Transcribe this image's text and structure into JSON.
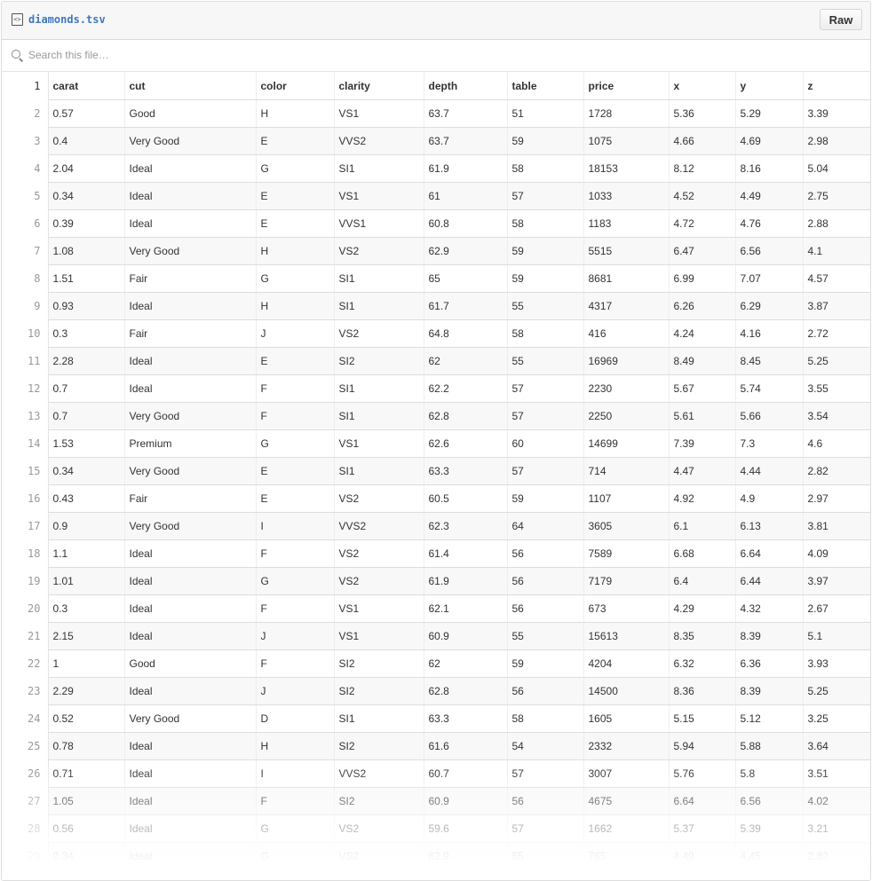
{
  "file": {
    "name": "diamonds.tsv",
    "raw_label": "Raw",
    "icon": "code-file-icon"
  },
  "search": {
    "placeholder": "Search this file…",
    "icon": "search-icon"
  },
  "table": {
    "header_line": "1",
    "columns": [
      "carat",
      "cut",
      "color",
      "clarity",
      "depth",
      "table",
      "price",
      "x",
      "y",
      "z"
    ],
    "rows": [
      {
        "line": "2",
        "cells": [
          "0.57",
          "Good",
          "H",
          "VS1",
          "63.7",
          "51",
          "1728",
          "5.36",
          "5.29",
          "3.39"
        ]
      },
      {
        "line": "3",
        "cells": [
          "0.4",
          "Very Good",
          "E",
          "VVS2",
          "63.7",
          "59",
          "1075",
          "4.66",
          "4.69",
          "2.98"
        ]
      },
      {
        "line": "4",
        "cells": [
          "2.04",
          "Ideal",
          "G",
          "SI1",
          "61.9",
          "58",
          "18153",
          "8.12",
          "8.16",
          "5.04"
        ]
      },
      {
        "line": "5",
        "cells": [
          "0.34",
          "Ideal",
          "E",
          "VS1",
          "61",
          "57",
          "1033",
          "4.52",
          "4.49",
          "2.75"
        ]
      },
      {
        "line": "6",
        "cells": [
          "0.39",
          "Ideal",
          "E",
          "VVS1",
          "60.8",
          "58",
          "1183",
          "4.72",
          "4.76",
          "2.88"
        ]
      },
      {
        "line": "7",
        "cells": [
          "1.08",
          "Very Good",
          "H",
          "VS2",
          "62.9",
          "59",
          "5515",
          "6.47",
          "6.56",
          "4.1"
        ]
      },
      {
        "line": "8",
        "cells": [
          "1.51",
          "Fair",
          "G",
          "SI1",
          "65",
          "59",
          "8681",
          "6.99",
          "7.07",
          "4.57"
        ]
      },
      {
        "line": "9",
        "cells": [
          "0.93",
          "Ideal",
          "H",
          "SI1",
          "61.7",
          "55",
          "4317",
          "6.26",
          "6.29",
          "3.87"
        ]
      },
      {
        "line": "10",
        "cells": [
          "0.3",
          "Fair",
          "J",
          "VS2",
          "64.8",
          "58",
          "416",
          "4.24",
          "4.16",
          "2.72"
        ]
      },
      {
        "line": "11",
        "cells": [
          "2.28",
          "Ideal",
          "E",
          "SI2",
          "62",
          "55",
          "16969",
          "8.49",
          "8.45",
          "5.25"
        ]
      },
      {
        "line": "12",
        "cells": [
          "0.7",
          "Ideal",
          "F",
          "SI1",
          "62.2",
          "57",
          "2230",
          "5.67",
          "5.74",
          "3.55"
        ]
      },
      {
        "line": "13",
        "cells": [
          "0.7",
          "Very Good",
          "F",
          "SI1",
          "62.8",
          "57",
          "2250",
          "5.61",
          "5.66",
          "3.54"
        ]
      },
      {
        "line": "14",
        "cells": [
          "1.53",
          "Premium",
          "G",
          "VS1",
          "62.6",
          "60",
          "14699",
          "7.39",
          "7.3",
          "4.6"
        ]
      },
      {
        "line": "15",
        "cells": [
          "0.34",
          "Very Good",
          "E",
          "SI1",
          "63.3",
          "57",
          "714",
          "4.47",
          "4.44",
          "2.82"
        ]
      },
      {
        "line": "16",
        "cells": [
          "0.43",
          "Fair",
          "E",
          "VS2",
          "60.5",
          "59",
          "1107",
          "4.92",
          "4.9",
          "2.97"
        ]
      },
      {
        "line": "17",
        "cells": [
          "0.9",
          "Very Good",
          "I",
          "VVS2",
          "62.3",
          "64",
          "3605",
          "6.1",
          "6.13",
          "3.81"
        ]
      },
      {
        "line": "18",
        "cells": [
          "1.1",
          "Ideal",
          "F",
          "VS2",
          "61.4",
          "56",
          "7589",
          "6.68",
          "6.64",
          "4.09"
        ]
      },
      {
        "line": "19",
        "cells": [
          "1.01",
          "Ideal",
          "G",
          "VS2",
          "61.9",
          "56",
          "7179",
          "6.4",
          "6.44",
          "3.97"
        ]
      },
      {
        "line": "20",
        "cells": [
          "0.3",
          "Ideal",
          "F",
          "VS1",
          "62.1",
          "56",
          "673",
          "4.29",
          "4.32",
          "2.67"
        ]
      },
      {
        "line": "21",
        "cells": [
          "2.15",
          "Ideal",
          "J",
          "VS1",
          "60.9",
          "55",
          "15613",
          "8.35",
          "8.39",
          "5.1"
        ]
      },
      {
        "line": "22",
        "cells": [
          "1",
          "Good",
          "F",
          "SI2",
          "62",
          "59",
          "4204",
          "6.32",
          "6.36",
          "3.93"
        ]
      },
      {
        "line": "23",
        "cells": [
          "2.29",
          "Ideal",
          "J",
          "SI2",
          "62.8",
          "56",
          "14500",
          "8.36",
          "8.39",
          "5.25"
        ]
      },
      {
        "line": "24",
        "cells": [
          "0.52",
          "Very Good",
          "D",
          "SI1",
          "63.3",
          "58",
          "1605",
          "5.15",
          "5.12",
          "3.25"
        ]
      },
      {
        "line": "25",
        "cells": [
          "0.78",
          "Ideal",
          "H",
          "SI2",
          "61.6",
          "54",
          "2332",
          "5.94",
          "5.88",
          "3.64"
        ]
      },
      {
        "line": "26",
        "cells": [
          "0.71",
          "Ideal",
          "I",
          "VVS2",
          "60.7",
          "57",
          "3007",
          "5.76",
          "5.8",
          "3.51"
        ]
      },
      {
        "line": "27",
        "cells": [
          "1.05",
          "Ideal",
          "F",
          "SI2",
          "60.9",
          "56",
          "4675",
          "6.64",
          "6.56",
          "4.02"
        ]
      },
      {
        "line": "28",
        "cells": [
          "0.56",
          "Ideal",
          "G",
          "VS2",
          "59.6",
          "57",
          "1662",
          "5.37",
          "5.39",
          "3.21"
        ]
      },
      {
        "line": "29",
        "cells": [
          "0.34",
          "Ideal",
          "G",
          "VS2",
          "62.9",
          "55",
          "765",
          "4.49",
          "4.45",
          "2.82"
        ]
      }
    ]
  },
  "colors": {
    "link": "#4078c0",
    "stripe": "#f8f8f8",
    "border": "#dddddd",
    "line_number": "#999999"
  }
}
